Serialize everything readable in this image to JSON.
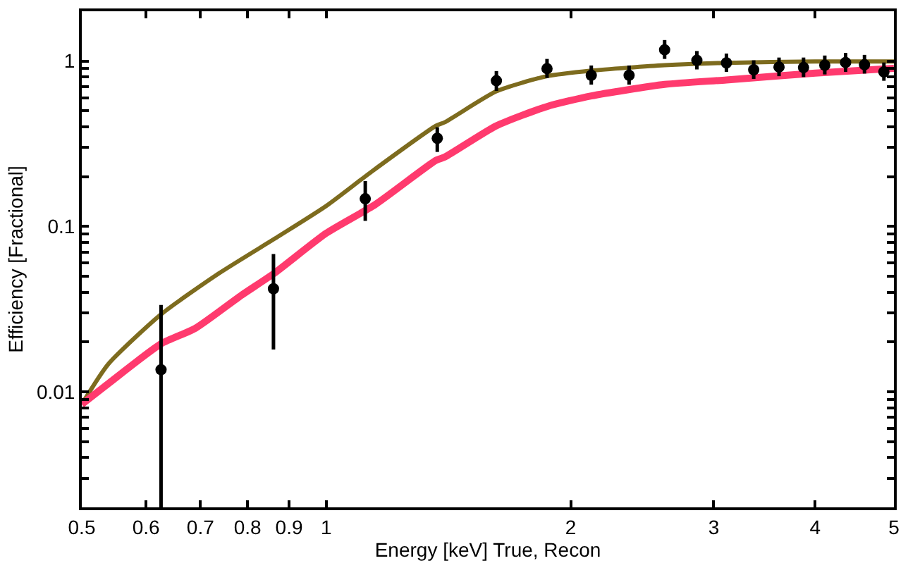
{
  "chart_data": {
    "type": "line",
    "xlabel": "Energy [keV] True, Recon",
    "ylabel": "Efficiency [Fractional]",
    "log": "xy",
    "xlim": [
      0.5,
      5
    ],
    "ylim": [
      0.002,
      2
    ],
    "xticks": [
      0.5,
      0.6,
      0.7,
      0.8,
      0.9,
      1,
      2,
      3,
      4,
      5
    ],
    "yticks": [
      {
        "value": 0.002,
        "label": null
      },
      {
        "value": 0.003,
        "label": null
      },
      {
        "value": 0.004,
        "label": null
      },
      {
        "value": 0.005,
        "label": null
      },
      {
        "value": 0.006,
        "label": null
      },
      {
        "value": 0.007,
        "label": null
      },
      {
        "value": 0.008,
        "label": null
      },
      {
        "value": 0.009,
        "label": null
      },
      0.01,
      {
        "value": 0.02,
        "label": null
      },
      {
        "value": 0.03,
        "label": null
      },
      {
        "value": 0.04,
        "label": null
      },
      {
        "value": 0.05,
        "label": null
      },
      {
        "value": 0.06,
        "label": null
      },
      {
        "value": 0.07,
        "label": null
      },
      {
        "value": 0.08,
        "label": null
      },
      {
        "value": 0.09,
        "label": null
      },
      0.1,
      {
        "value": 0.2,
        "label": null
      },
      {
        "value": 0.3,
        "label": null
      },
      {
        "value": 0.4,
        "label": null
      },
      {
        "value": 0.5,
        "label": null
      },
      {
        "value": 0.6,
        "label": null
      },
      {
        "value": 0.7,
        "label": null
      },
      {
        "value": 0.8,
        "label": null
      },
      {
        "value": 0.9,
        "label": null
      },
      1
    ],
    "series": [
      {
        "color": "#7d6b1e",
        "line_style": "solid",
        "marker": "none",
        "x": [
          0.5,
          0.539,
          0.626,
          0.738,
          0.875,
          1.0,
          1.138,
          1.365,
          1.4,
          1.62,
          1.87,
          2.12,
          2.61,
          3.11,
          4.0,
          5.0
        ],
        "values": [
          0.0084,
          0.0147,
          0.0294,
          0.0521,
          0.0876,
          0.133,
          0.215,
          0.406,
          0.427,
          0.656,
          0.81,
          0.875,
          0.944,
          0.975,
          0.994,
          0.994
        ]
      },
      {
        "color": "#ff3a6e",
        "line_style": "solid",
        "marker": "none",
        "x": [
          0.5,
          0.539,
          0.626,
          0.69,
          0.786,
          0.863,
          1.0,
          1.15,
          1.365,
          1.4,
          1.62,
          1.87,
          2.12,
          2.61,
          3.11,
          4.0,
          5.0
        ],
        "values": [
          0.0084,
          0.0112,
          0.0195,
          0.0242,
          0.0383,
          0.0521,
          0.091,
          0.136,
          0.251,
          0.263,
          0.406,
          0.531,
          0.615,
          0.722,
          0.769,
          0.846,
          0.903
        ]
      },
      {
        "type": "scatter",
        "color": "#000000",
        "marker": "circle",
        "x": [
          0.626,
          0.861,
          1.117,
          1.37,
          1.62,
          1.87,
          2.12,
          2.36,
          2.61,
          2.86,
          3.11,
          3.36,
          3.61,
          3.87,
          4.11,
          4.36,
          4.6,
          4.86
        ],
        "values": [
          0.0136,
          0.042,
          0.147,
          0.341,
          0.76,
          0.9,
          0.82,
          0.82,
          1.17,
          1.01,
          0.975,
          0.886,
          0.92,
          0.914,
          0.944,
          0.98,
          0.95,
          0.86
        ],
        "errors": [
          [
            0.002,
            0.0335
          ],
          [
            0.018,
            0.068
          ],
          [
            0.108,
            0.188
          ],
          [
            0.282,
            0.398
          ],
          [
            0.66,
            0.87
          ],
          [
            0.79,
            1.03
          ],
          [
            0.72,
            0.94
          ],
          [
            0.72,
            0.94
          ],
          [
            1.03,
            1.34
          ],
          [
            0.89,
            1.15
          ],
          [
            0.86,
            1.11
          ],
          [
            0.78,
            1.01
          ],
          [
            0.81,
            1.05
          ],
          [
            0.8,
            1.05
          ],
          [
            0.83,
            1.08
          ],
          [
            0.86,
            1.12
          ],
          [
            0.84,
            1.09
          ],
          [
            0.76,
            0.98
          ]
        ]
      }
    ]
  }
}
